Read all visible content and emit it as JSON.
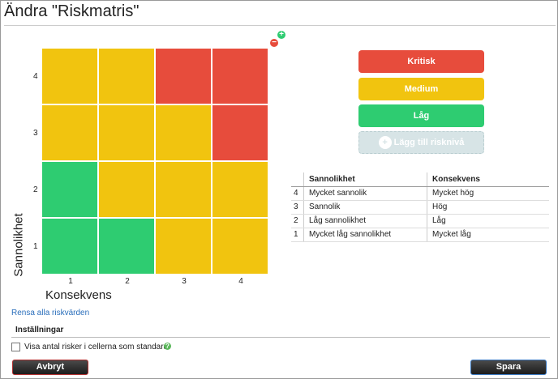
{
  "header": {
    "title": "Ändra \"Riskmatris\""
  },
  "matrix": {
    "y_label": "Sannolikhet",
    "x_label": "Konsekvens",
    "x_categories": [
      "1",
      "2",
      "3",
      "4"
    ],
    "rows": [
      {
        "label": "4",
        "cells": [
          "#f1c40f",
          "#f1c40f",
          "#e74c3c",
          "#e74c3c"
        ]
      },
      {
        "label": "3",
        "cells": [
          "#f1c40f",
          "#f1c40f",
          "#f1c40f",
          "#e74c3c"
        ]
      },
      {
        "label": "2",
        "cells": [
          "#2ecc71",
          "#f1c40f",
          "#f1c40f",
          "#f1c40f"
        ]
      },
      {
        "label": "1",
        "cells": [
          "#2ecc71",
          "#2ecc71",
          "#f1c40f",
          "#f1c40f"
        ]
      }
    ]
  },
  "levels": [
    {
      "name": "Kritisk",
      "color": "#e74c3c"
    },
    {
      "name": "Medium",
      "color": "#f1c40f"
    },
    {
      "name": "Låg",
      "color": "#2ecc71"
    }
  ],
  "add_level": "Lägg till risknivå",
  "table": {
    "columns": [
      "Sannolikhet",
      "Konsekvens"
    ],
    "rows": [
      [
        "4",
        "Mycket sannolik",
        "Mycket hög"
      ],
      [
        "3",
        "Sannolik",
        "Hög"
      ],
      [
        "2",
        "Låg sannolikhet",
        "Låg"
      ],
      [
        "1",
        "Mycket låg sannolikhet",
        "Mycket låg"
      ]
    ]
  },
  "clear_link": "Rensa alla riskvärden",
  "settings": {
    "title": "Inställningar",
    "checkbox": "Visa antal risker i cellerna som standard"
  },
  "buttons": {
    "cancel": "Avbryt",
    "save": "Spara"
  }
}
